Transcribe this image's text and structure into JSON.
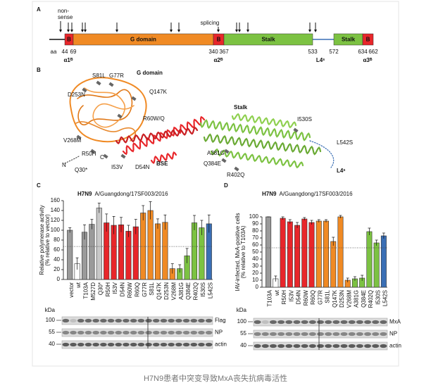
{
  "panel_labels": [
    "A",
    "B",
    "C",
    "D"
  ],
  "domain_map": {
    "arrow_labels": [
      [
        "non-",
        "sense"
      ],
      "splicing"
    ],
    "domains": [
      "B",
      "G domain",
      "B",
      "Stalk",
      "Stalk",
      "B"
    ],
    "positions": [
      "aa",
      "44",
      "69",
      "340",
      "367",
      "533",
      "572",
      "634",
      "662"
    ],
    "elements": [
      "α1ᴮ",
      "α2ᴮ",
      "L4ˢ",
      "α3ᴮ"
    ]
  },
  "structure": {
    "labels": [
      "D253N",
      "S81L",
      "G77R",
      "G domain",
      "Q147K",
      "R60W/Q",
      "V268M",
      "R50H",
      "C",
      "I53V",
      "D54N",
      "BSE",
      "N",
      "Q30*",
      "Stalk",
      "I530S",
      "A381G",
      "Q384E",
      "R402Q",
      "L542S",
      "L4ˢ"
    ]
  },
  "chart_data": [
    {
      "type": "bar",
      "title_bold": "H7N9",
      "title": "A/Guangdong/17SF003/2016",
      "ylabel": [
        "Relative polymerase activity",
        "(% relative to vector)"
      ],
      "categories": [
        "vector",
        "wt",
        "T103A",
        "M527D",
        "Q30*",
        "R50H",
        "I53V",
        "D54N",
        "R60W",
        "R60Q",
        "G77R",
        "S81L",
        "Q147K",
        "D253N",
        "V268M",
        "A381G",
        "Q384E",
        "R402Q",
        "I530S",
        "L542S"
      ],
      "values": [
        100,
        32,
        96,
        112,
        145,
        115,
        110,
        111,
        98,
        107,
        135,
        140,
        113,
        116,
        22,
        22,
        48,
        115,
        105,
        113
      ],
      "errors": [
        5,
        12,
        15,
        10,
        10,
        18,
        18,
        15,
        12,
        15,
        15,
        18,
        10,
        15,
        10,
        8,
        15,
        15,
        15,
        18
      ],
      "colors": [
        "#9a9a9a",
        "#ffffff",
        "#9a9a9a",
        "#9a9a9a",
        "#c8c8c8",
        "#e8262a",
        "#e8262a",
        "#e8262a",
        "#e8262a",
        "#e8262a",
        "#f08a24",
        "#f08a24",
        "#f08a24",
        "#f08a24",
        "#f08a24",
        "#7cc242",
        "#7cc242",
        "#7cc242",
        "#7cc242",
        "#3a6fb5"
      ],
      "reference_line": 67,
      "ylim": [
        0,
        160
      ],
      "yticks": [
        0,
        20,
        40,
        60,
        80,
        100,
        120,
        140,
        160
      ]
    },
    {
      "type": "bar",
      "title_bold": "H7N9",
      "title": "A/Guangdong/17SF003/2016",
      "ylabel": [
        "IAV-infected, MxA-positive cells",
        "(% relative to T103A)"
      ],
      "categories": [
        "T103A",
        "wt",
        "R50H",
        "I53V",
        "D54N",
        "R60W",
        "R60Q",
        "G77R",
        "S81L",
        "Q147K",
        "D253N",
        "V268M",
        "A381G",
        "Q384E",
        "R402Q",
        "I530S",
        "L542S"
      ],
      "values": [
        100,
        12,
        98,
        93,
        88,
        97,
        92,
        94,
        94,
        65,
        100,
        10,
        12,
        13,
        79,
        63,
        73
      ],
      "errors": [
        0,
        4,
        2,
        3,
        4,
        2,
        3,
        2,
        2,
        6,
        2,
        3,
        3,
        4,
        5,
        4,
        4
      ],
      "colors": [
        "#9a9a9a",
        "#ffffff",
        "#e8262a",
        "#e8262a",
        "#e8262a",
        "#e8262a",
        "#e8262a",
        "#f08a24",
        "#f08a24",
        "#f08a24",
        "#f08a24",
        "#f08a24",
        "#7cc242",
        "#7cc242",
        "#7cc242",
        "#7cc242",
        "#3a6fb5"
      ],
      "reference_line": 56,
      "ylim": [
        0,
        100
      ],
      "yticks": [
        0,
        10,
        20,
        30,
        40,
        50,
        60,
        70,
        80,
        90,
        100
      ]
    }
  ],
  "blots": [
    {
      "kda": [
        "kDa",
        "100",
        "55",
        "40"
      ],
      "bands": [
        "Flag",
        "NP",
        "actin"
      ]
    },
    {
      "kda": [
        "kDa",
        "100",
        "55",
        "40"
      ],
      "bands": [
        "MxA",
        "NP",
        "actin"
      ]
    }
  ],
  "caption": "H7N9患者中突变导致MxA丧失抗病毒活性"
}
